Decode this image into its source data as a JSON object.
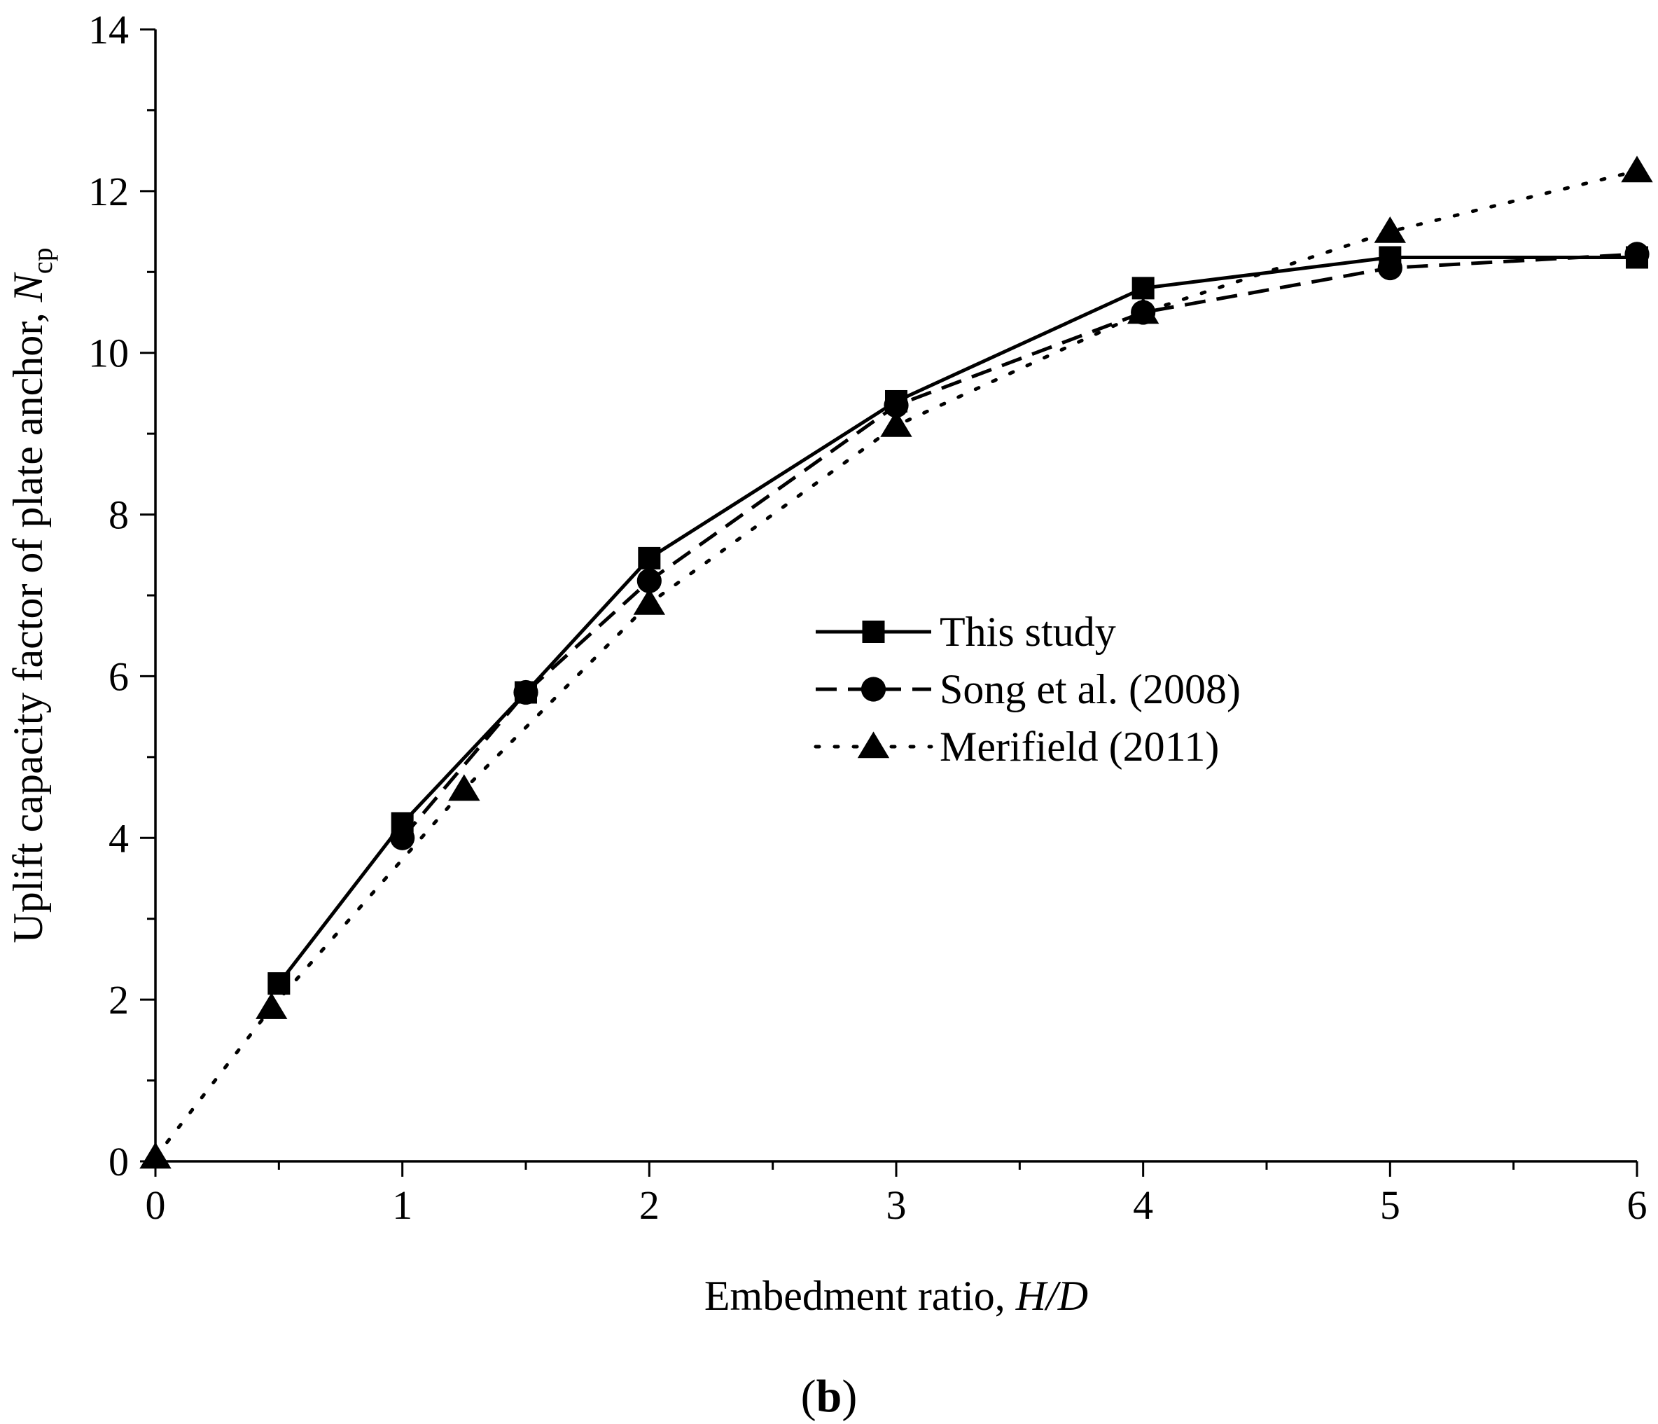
{
  "chart_data": {
    "type": "line",
    "xlabel": "Embedment ratio, ",
    "xlabel_italic": "H/D",
    "ylabel": "Uplift capacity factor of plate anchor, ",
    "ylabel_italic": "N",
    "ylabel_sub": "cp",
    "panel_label_open": "(",
    "panel_label_letter": "b",
    "panel_label_close": ")",
    "xlim": [
      0,
      6
    ],
    "ylim": [
      0,
      14
    ],
    "x_ticks": [
      "0",
      "1",
      "2",
      "3",
      "4",
      "5",
      "6"
    ],
    "y_ticks": [
      "0",
      "2",
      "4",
      "6",
      "8",
      "10",
      "12",
      "14"
    ],
    "grid": false,
    "legend_position": "center-right",
    "series": [
      {
        "name": "This study",
        "line": "solid",
        "marker": "square",
        "x": [
          0.5,
          1,
          1.5,
          2,
          3,
          4,
          5,
          6
        ],
        "y": [
          2.2,
          4.18,
          5.8,
          7.46,
          9.4,
          10.8,
          11.18,
          11.18
        ]
      },
      {
        "name": "Song et al. (2008)",
        "line": "dashed",
        "marker": "circle",
        "x": [
          1,
          1.5,
          2,
          3,
          4,
          5,
          6
        ],
        "y": [
          4.0,
          5.8,
          7.18,
          9.35,
          10.5,
          11.05,
          11.22
        ]
      },
      {
        "name": "Merifield (2011)",
        "line": "dotted",
        "marker": "triangle",
        "x": [
          0,
          0.47,
          1.25,
          2,
          3,
          4,
          5,
          6
        ],
        "y": [
          0.05,
          1.9,
          4.6,
          6.9,
          9.1,
          10.5,
          11.5,
          12.25
        ]
      }
    ]
  }
}
